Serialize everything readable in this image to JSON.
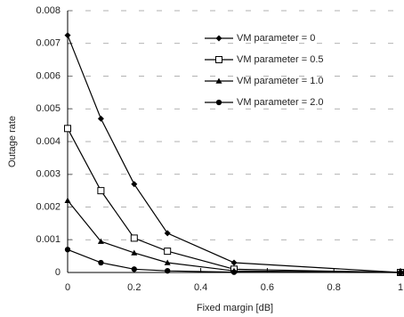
{
  "chart_data": {
    "type": "line",
    "xlabel": "Fixed margin [dB]",
    "ylabel": "Outage rate",
    "x": [
      0,
      0.1,
      0.2,
      0.3,
      0.5,
      1
    ],
    "series": [
      {
        "name": "VM parameter = 0",
        "color": "#000000",
        "marker": "diamond",
        "values": [
          0.00725,
          0.0047,
          0.0027,
          0.0012,
          0.0003,
          0
        ]
      },
      {
        "name": "VM parameter = 0.5",
        "color": "#000000",
        "marker": "square",
        "values": [
          0.0044,
          0.0025,
          0.00105,
          0.00065,
          0.0001,
          0
        ]
      },
      {
        "name": "VM parameter = 1.0",
        "color": "#000000",
        "marker": "triangle",
        "values": [
          0.0022,
          0.00095,
          0.0006,
          0.0003,
          5e-05,
          0
        ]
      },
      {
        "name": "VM parameter = 2.0",
        "color": "#000000",
        "marker": "circle",
        "values": [
          0.0007,
          0.0003,
          0.0001,
          5e-05,
          1e-05,
          0
        ]
      }
    ],
    "xlim": [
      0,
      1
    ],
    "xticks": [
      0,
      0.2,
      0.4,
      0.6,
      0.8,
      1
    ],
    "ylim": [
      0,
      0.008
    ],
    "yticks": [
      0,
      0.001,
      0.002,
      0.003,
      0.004,
      0.005,
      0.006,
      0.007,
      0.008
    ],
    "grid": true,
    "legend": "upper right"
  }
}
